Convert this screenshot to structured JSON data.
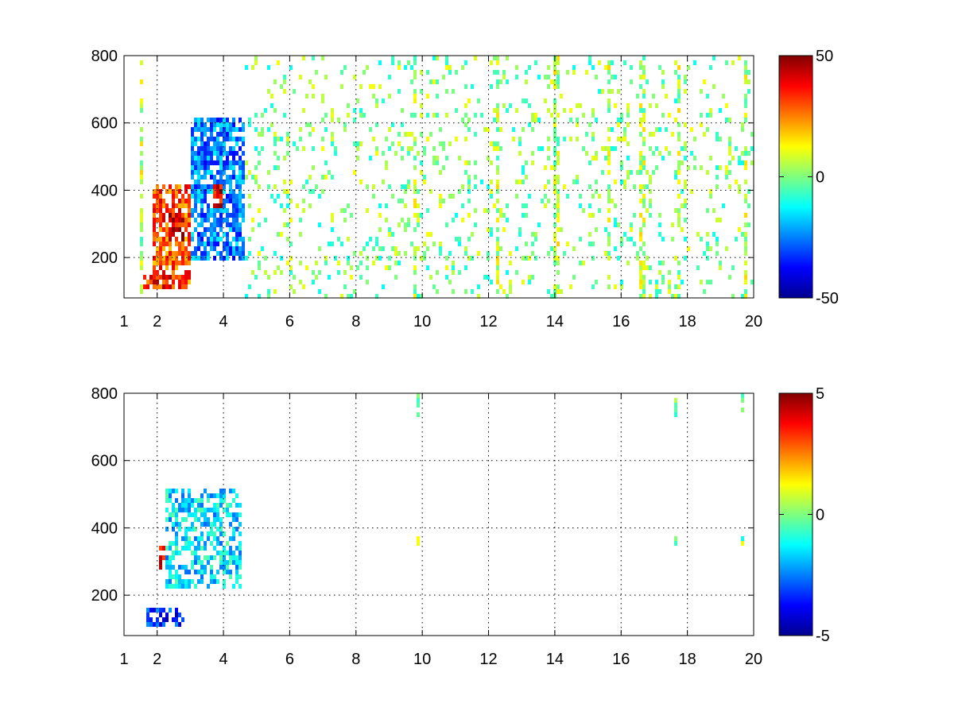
{
  "chart_data": [
    {
      "type": "heatmap",
      "title": "",
      "xlabel": "",
      "ylabel": "",
      "xlim": [
        1,
        20
      ],
      "ylim": [
        80,
        800
      ],
      "x_ticks": [
        "1",
        "2",
        "4",
        "6",
        "8",
        "10",
        "12",
        "14",
        "16",
        "18",
        "20"
      ],
      "x_tick_values": [
        1,
        2,
        4,
        6,
        8,
        10,
        12,
        14,
        16,
        18,
        20
      ],
      "y_ticks": [
        "200",
        "400",
        "600",
        "800"
      ],
      "y_tick_values": [
        200,
        400,
        600,
        800
      ],
      "grid": true,
      "colormap": "jet",
      "clim": [
        -50,
        50
      ],
      "colorbar_ticks": [
        "50",
        "0",
        "-50"
      ],
      "colorbar_tick_values": [
        50,
        0,
        -50
      ],
      "features": [
        {
          "description": "positive (yellow-red) band",
          "x_range": [
            1.8,
            3.0
          ],
          "y_range": [
            120,
            420
          ],
          "value": 30
        },
        {
          "description": "strong positive core",
          "x_range": [
            2.3,
            2.8
          ],
          "y_range": [
            260,
            360
          ],
          "value": 40
        },
        {
          "description": "positive low band",
          "x_range": [
            1.5,
            2.5
          ],
          "y_range": [
            110,
            160
          ],
          "value": 35
        },
        {
          "description": "negative (cyan-blue) region",
          "x_range": [
            3.0,
            4.6
          ],
          "y_range": [
            200,
            620
          ],
          "value": -25
        },
        {
          "description": "red spot",
          "x_range": [
            3.6,
            3.9
          ],
          "y_range": [
            350,
            420
          ],
          "value": 40
        },
        {
          "description": "sparse scattered values near zero",
          "x_range": [
            4.5,
            20
          ],
          "y_range": [
            80,
            800
          ],
          "value": 0
        },
        {
          "description": "vertical streaks",
          "x_values": [
            1.5,
            9.7,
            12.2,
            14.0,
            15.6,
            16.6,
            17.7,
            19.7
          ],
          "value": 5
        }
      ]
    },
    {
      "type": "heatmap",
      "title": "",
      "xlabel": "",
      "ylabel": "",
      "xlim": [
        1,
        20
      ],
      "ylim": [
        80,
        800
      ],
      "x_ticks": [
        "1",
        "2",
        "4",
        "6",
        "8",
        "10",
        "12",
        "14",
        "16",
        "18",
        "20"
      ],
      "x_tick_values": [
        1,
        2,
        4,
        6,
        8,
        10,
        12,
        14,
        16,
        18,
        20
      ],
      "y_ticks": [
        "200",
        "400",
        "600",
        "800"
      ],
      "y_tick_values": [
        200,
        400,
        600,
        800
      ],
      "grid": true,
      "colormap": "jet",
      "clim": [
        -5,
        5
      ],
      "colorbar_ticks": [
        "5",
        "0",
        "-5"
      ],
      "colorbar_tick_values": [
        5,
        0,
        -5
      ],
      "features": [
        {
          "description": "positive (orange-red) band",
          "x_range": [
            2.0,
            3.2
          ],
          "y_range": [
            280,
            380
          ],
          "value": 4
        },
        {
          "description": "cyan region",
          "x_range": [
            2.2,
            4.5
          ],
          "y_range": [
            220,
            520
          ],
          "value": -1.5
        },
        {
          "description": "blue low band",
          "x_range": [
            1.6,
            2.8
          ],
          "y_range": [
            120,
            170
          ],
          "value": -3.5
        },
        {
          "description": "isolated points",
          "x_values": [
            9.8,
            17.6,
            19.6
          ],
          "value": 0
        }
      ]
    }
  ]
}
